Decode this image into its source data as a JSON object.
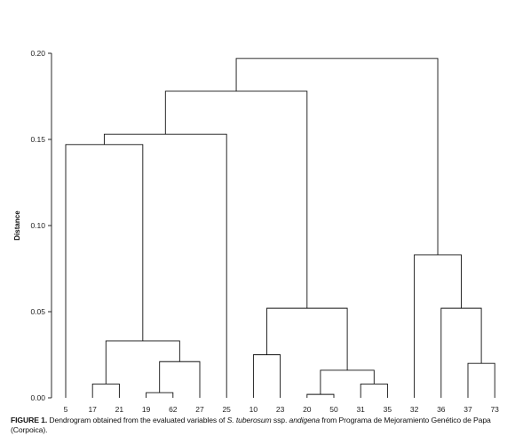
{
  "caption": {
    "figure_label": "FIGURE 1.",
    "text_before": "Dendrogram obtained from the evaluated variables of",
    "species": "S. tuberosum",
    "ssp": "ssp.",
    "subspecies": "andigena",
    "text_after": "from Programa de Mejoramiento Genético de Papa (Corpoica)."
  },
  "chart_data": {
    "type": "dendrogram",
    "ylabel": "Distance",
    "ylim": [
      0,
      0.2
    ],
    "yticks": [
      {
        "value": 0.0,
        "label": "0.00"
      },
      {
        "value": 0.05,
        "label": "0.05"
      },
      {
        "value": 0.1,
        "label": "0.10"
      },
      {
        "value": 0.15,
        "label": "0.15"
      },
      {
        "value": 0.2,
        "label": "0.20"
      }
    ],
    "leaves": [
      "5",
      "17",
      "21",
      "19",
      "62",
      "27",
      "25",
      "10",
      "23",
      "20",
      "50",
      "31",
      "35",
      "32",
      "36",
      "37",
      "73"
    ],
    "merges": [
      {
        "left": "L1",
        "right": "L2",
        "height": 0.008
      },
      {
        "left": "L3",
        "right": "L4",
        "height": 0.003
      },
      {
        "left": "M1",
        "right": "L5",
        "height": 0.021
      },
      {
        "left": "M0",
        "right": "M2",
        "height": 0.033
      },
      {
        "left": "L0",
        "right": "M3",
        "height": 0.147
      },
      {
        "left": "M4",
        "right": "L6",
        "height": 0.153
      },
      {
        "left": "L7",
        "right": "L8",
        "height": 0.025
      },
      {
        "left": "L9",
        "right": "L10",
        "height": 0.002
      },
      {
        "left": "L11",
        "right": "L12",
        "height": 0.008
      },
      {
        "left": "M7",
        "right": "M8",
        "height": 0.016
      },
      {
        "left": "M6",
        "right": "M9",
        "height": 0.052
      },
      {
        "left": "M5",
        "right": "M10",
        "height": 0.178
      },
      {
        "left": "L15",
        "right": "L16",
        "height": 0.02
      },
      {
        "left": "L14",
        "right": "M12",
        "height": 0.052
      },
      {
        "left": "L13",
        "right": "M13",
        "height": 0.083
      },
      {
        "left": "M11",
        "right": "M14",
        "height": 0.197
      }
    ]
  }
}
